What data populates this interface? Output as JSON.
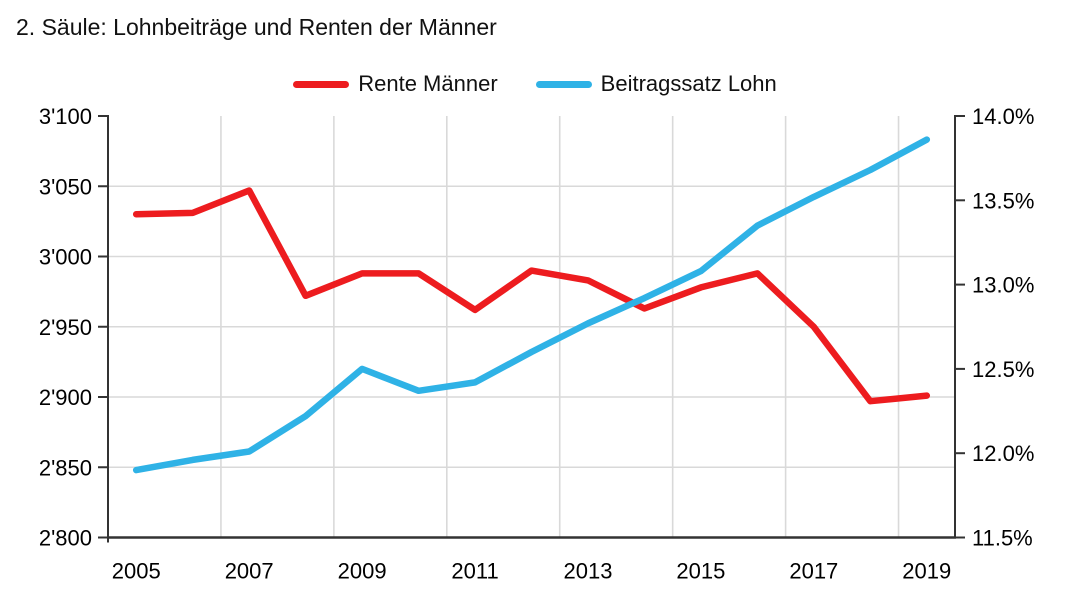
{
  "chart_data": {
    "type": "line",
    "title": "2. Säule: Lohnbeiträge und Renten der Männer",
    "categories": [
      2005,
      2006,
      2007,
      2008,
      2009,
      2010,
      2011,
      2012,
      2013,
      2014,
      2015,
      2016,
      2017,
      2018,
      2019
    ],
    "x_tick_labels": [
      "2005",
      "2007",
      "2009",
      "2011",
      "2013",
      "2015",
      "2017",
      "2019"
    ],
    "series": [
      {
        "name": "Rente Männer",
        "axis": "left",
        "color": "#ed1c1f",
        "values": [
          3030,
          3031,
          3047,
          2972,
          2988,
          2988,
          2962,
          2990,
          2983,
          2963,
          2978,
          2988,
          2950,
          2897,
          2901
        ]
      },
      {
        "name": "Beitragssatz Lohn",
        "axis": "right",
        "color": "#2fb2e6",
        "values": [
          11.9,
          11.96,
          12.01,
          12.22,
          12.5,
          12.37,
          12.42,
          12.6,
          12.77,
          12.92,
          13.08,
          13.35,
          13.52,
          13.68,
          13.86
        ]
      }
    ],
    "left_axis": {
      "min": 2800,
      "max": 3100,
      "step": 50,
      "tick_labels": [
        "3'100",
        "3'050",
        "3'000",
        "2'950",
        "2'900",
        "2'850",
        "2'800"
      ]
    },
    "right_axis": {
      "min": 11.5,
      "max": 14.0,
      "step": 0.5,
      "tick_labels": [
        "14.0%",
        "13.5%",
        "13.0%",
        "12.5%",
        "12.0%",
        "11.5%"
      ]
    },
    "legend_position": "top-center",
    "grid": {
      "show": true,
      "color": "#d9d9d9",
      "vertical_every_n_categories": 2
    },
    "axis_line_color": "#333333"
  }
}
